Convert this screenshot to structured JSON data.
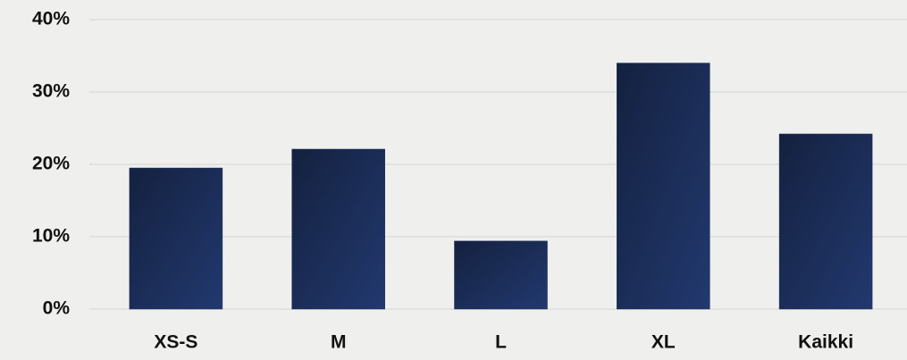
{
  "chart_data": {
    "type": "bar",
    "categories": [
      "XS-S",
      "M",
      "L",
      "XL",
      "Kaikki"
    ],
    "values": [
      19.5,
      22.1,
      9.4,
      34.0,
      24.2
    ],
    "color": "#1b2c55",
    "ylim": [
      0,
      40
    ],
    "yticks": [
      {
        "value": 0,
        "label": "0%"
      },
      {
        "value": 10,
        "label": "10%"
      },
      {
        "value": 20,
        "label": "20%"
      },
      {
        "value": 30,
        "label": "30%"
      },
      {
        "value": 40,
        "label": "40%"
      }
    ],
    "grid": true
  }
}
